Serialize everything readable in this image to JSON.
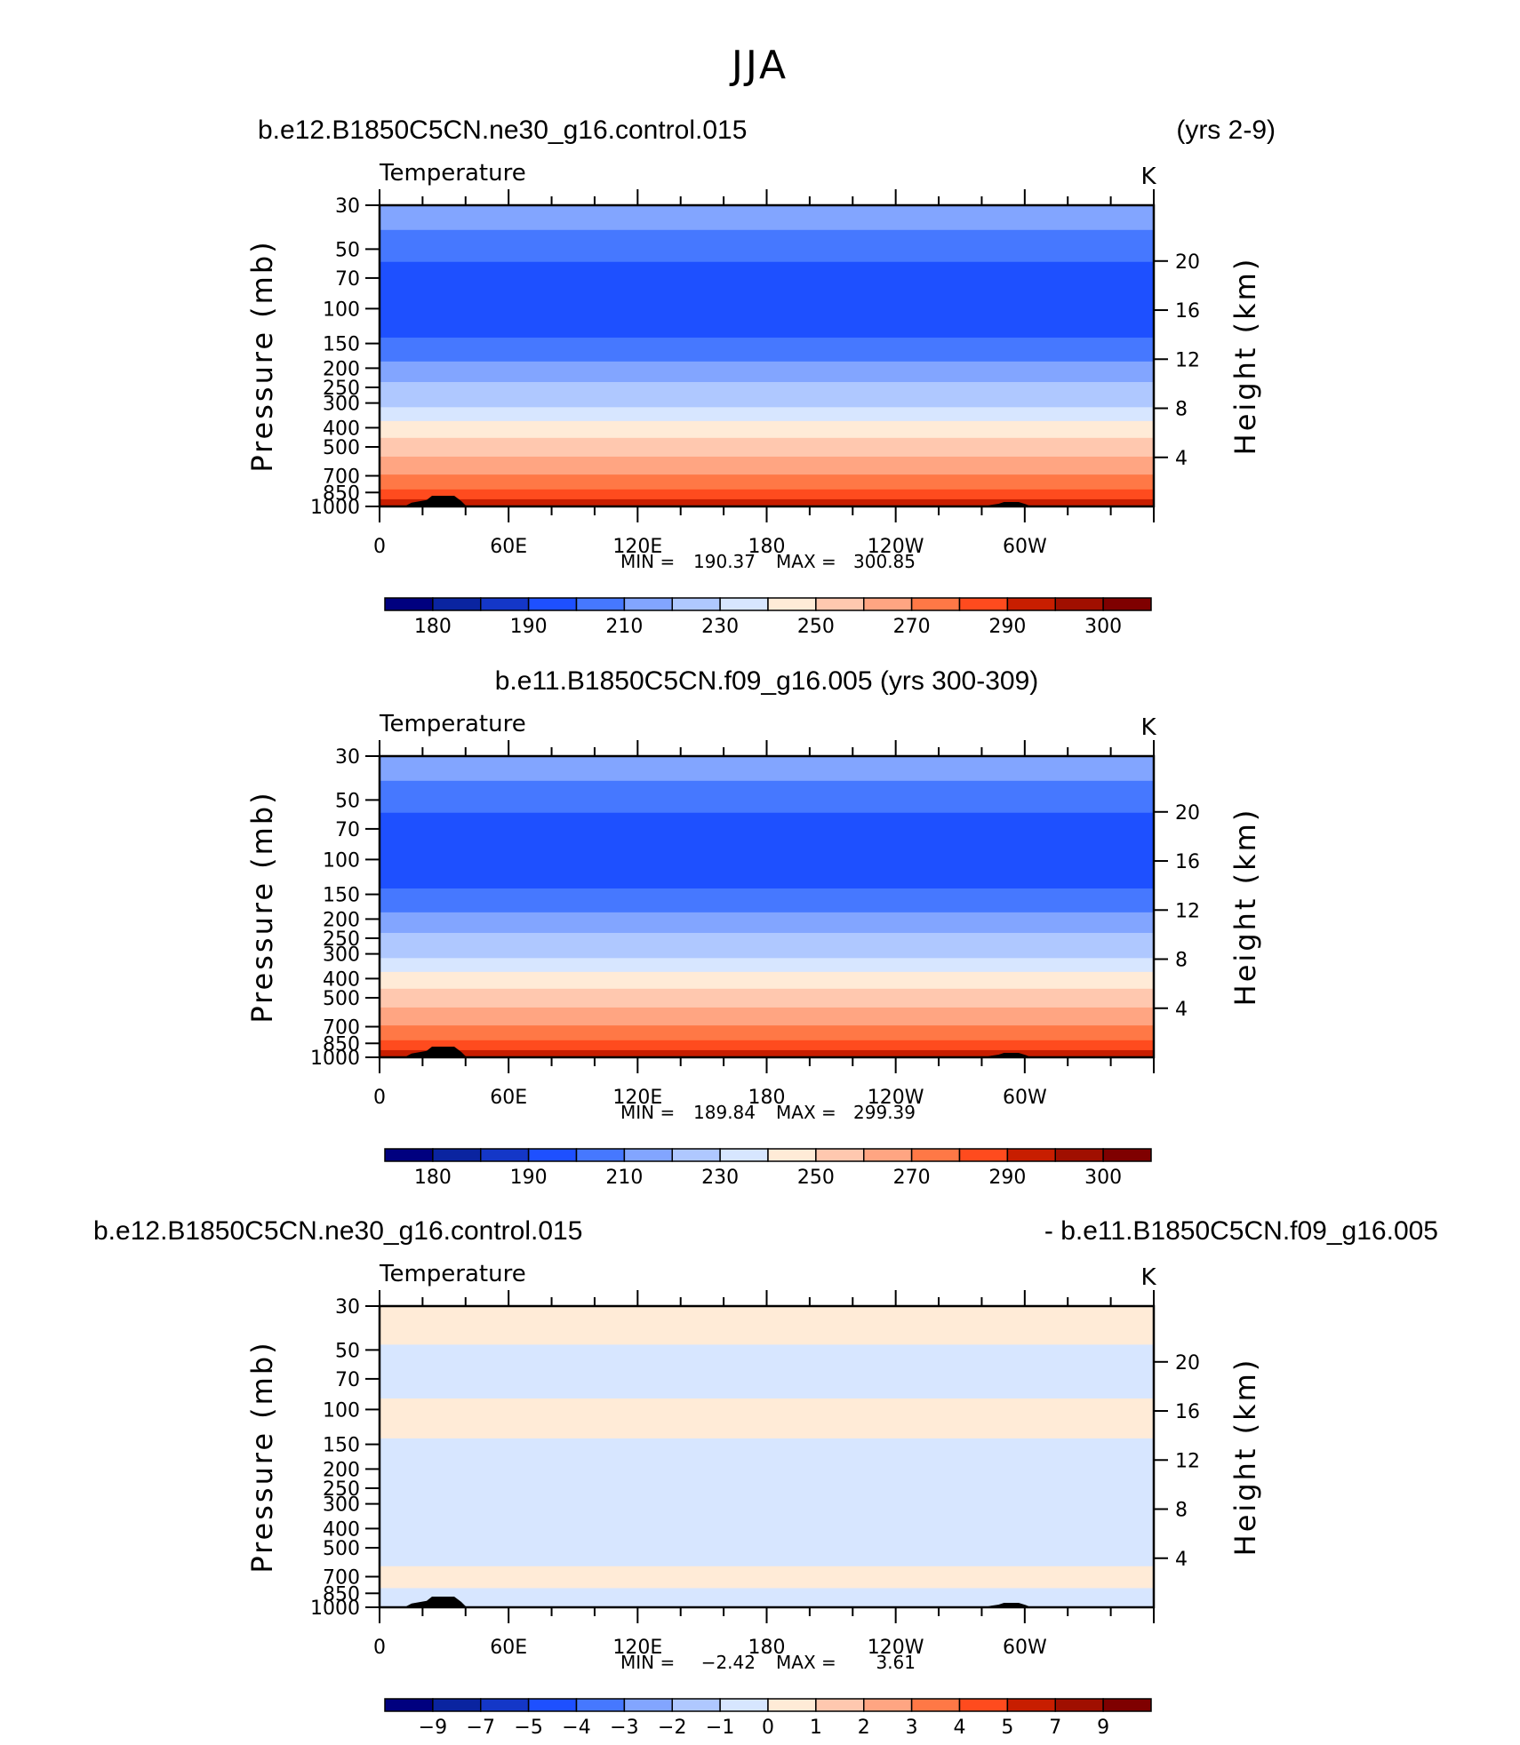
{
  "page_title": "JJA",
  "colors": {
    "ramp": [
      "#00007f",
      "#0a24a0",
      "#1437c8",
      "#1e50ff",
      "#4678ff",
      "#82a5ff",
      "#afc8ff",
      "#d7e6ff",
      "#ffebd7",
      "#ffc8af",
      "#ffa582",
      "#ff7846",
      "#ff4b1e",
      "#c81e00",
      "#a00f00",
      "#7f0000"
    ],
    "terrain": "#000000"
  },
  "chart_data": [
    {
      "type": "contour",
      "left_title": "b.e12.B1850C5CN.ne30_g16.control.015",
      "right_title": "(yrs 2-9)",
      "variable": "Temperature",
      "units": "K",
      "xlabel": "",
      "ylabel": "Pressure (mb)",
      "y2label": "Height (km)",
      "x_ticks": [
        "0",
        "60E",
        "120E",
        "180",
        "120W",
        "60W"
      ],
      "x_range": [
        0,
        360
      ],
      "p_range": [
        30,
        1000
      ],
      "p_ticks": [
        30,
        50,
        70,
        100,
        150,
        200,
        250,
        300,
        400,
        500,
        700,
        850,
        1000
      ],
      "z_ticks": [
        20,
        16,
        12,
        8,
        4
      ],
      "levels": [
        180,
        190,
        210,
        230,
        250,
        270,
        290,
        300
      ],
      "cbar_labels": [
        "180",
        "190",
        "210",
        "230",
        "250",
        "270",
        "290",
        "300"
      ],
      "stats": {
        "min_label": "MIN =",
        "min": "190.37",
        "max_label": "MAX =",
        "max": "300.85"
      },
      "bands": [
        {
          "p_top": 30,
          "p_bot": 40,
          "color_index": 5
        },
        {
          "p_top": 40,
          "p_bot": 58,
          "color_index": 4
        },
        {
          "p_top": 58,
          "p_bot": 140,
          "color_index": 3
        },
        {
          "p_top": 140,
          "p_bot": 185,
          "color_index": 4
        },
        {
          "p_top": 185,
          "p_bot": 235,
          "color_index": 5
        },
        {
          "p_top": 235,
          "p_bot": 315,
          "color_index": 6
        },
        {
          "p_top": 315,
          "p_bot": 370,
          "color_index": 7
        },
        {
          "p_top": 370,
          "p_bot": 450,
          "color_index": 8
        },
        {
          "p_top": 450,
          "p_bot": 560,
          "color_index": 9
        },
        {
          "p_top": 560,
          "p_bot": 690,
          "color_index": 10
        },
        {
          "p_top": 690,
          "p_bot": 820,
          "color_index": 11
        },
        {
          "p_top": 820,
          "p_bot": 920,
          "color_index": 12
        },
        {
          "p_top": 920,
          "p_bot": 1000,
          "color_index": 13
        }
      ]
    },
    {
      "type": "contour",
      "center_title": "b.e11.B1850C5CN.f09_g16.005 (yrs 300-309)",
      "variable": "Temperature",
      "units": "K",
      "xlabel": "",
      "ylabel": "Pressure (mb)",
      "y2label": "Height (km)",
      "x_ticks": [
        "0",
        "60E",
        "120E",
        "180",
        "120W",
        "60W"
      ],
      "x_range": [
        0,
        360
      ],
      "p_range": [
        30,
        1000
      ],
      "p_ticks": [
        30,
        50,
        70,
        100,
        150,
        200,
        250,
        300,
        400,
        500,
        700,
        850,
        1000
      ],
      "z_ticks": [
        20,
        16,
        12,
        8,
        4
      ],
      "levels": [
        180,
        190,
        210,
        230,
        250,
        270,
        290,
        300
      ],
      "cbar_labels": [
        "180",
        "190",
        "210",
        "230",
        "250",
        "270",
        "290",
        "300"
      ],
      "stats": {
        "min_label": "MIN =",
        "min": "189.84",
        "max_label": "MAX =",
        "max": "299.39"
      },
      "bands": [
        {
          "p_top": 30,
          "p_bot": 40,
          "color_index": 5
        },
        {
          "p_top": 40,
          "p_bot": 58,
          "color_index": 4
        },
        {
          "p_top": 58,
          "p_bot": 140,
          "color_index": 3
        },
        {
          "p_top": 140,
          "p_bot": 185,
          "color_index": 4
        },
        {
          "p_top": 185,
          "p_bot": 235,
          "color_index": 5
        },
        {
          "p_top": 235,
          "p_bot": 315,
          "color_index": 6
        },
        {
          "p_top": 315,
          "p_bot": 370,
          "color_index": 7
        },
        {
          "p_top": 370,
          "p_bot": 450,
          "color_index": 8
        },
        {
          "p_top": 450,
          "p_bot": 560,
          "color_index": 9
        },
        {
          "p_top": 560,
          "p_bot": 690,
          "color_index": 10
        },
        {
          "p_top": 690,
          "p_bot": 820,
          "color_index": 11
        },
        {
          "p_top": 820,
          "p_bot": 920,
          "color_index": 12
        },
        {
          "p_top": 920,
          "p_bot": 1000,
          "color_index": 13
        }
      ]
    },
    {
      "type": "contour",
      "left_title": "b.e12.B1850C5CN.ne30_g16.control.015",
      "right_title": "- b.e11.B1850C5CN.f09_g16.005",
      "variable": "Temperature",
      "units": "K",
      "xlabel": "",
      "ylabel": "Pressure (mb)",
      "y2label": "Height (km)",
      "x_ticks": [
        "0",
        "60E",
        "120E",
        "180",
        "120W",
        "60W"
      ],
      "x_range": [
        0,
        360
      ],
      "p_range": [
        30,
        1000
      ],
      "p_ticks": [
        30,
        50,
        70,
        100,
        150,
        200,
        250,
        300,
        400,
        500,
        700,
        850,
        1000
      ],
      "z_ticks": [
        20,
        16,
        12,
        8,
        4
      ],
      "levels": [
        -9,
        -7,
        -5,
        -4,
        -3,
        -2,
        -1,
        0,
        1,
        2,
        3,
        4,
        5,
        7,
        9
      ],
      "cbar_labels": [
        "−9",
        "−7",
        "−5",
        "−4",
        "−3",
        "−2",
        "−1",
        "0",
        "1",
        "2",
        "3",
        "4",
        "5",
        "7",
        "9"
      ],
      "stats": {
        "min_label": "MIN =",
        "min": "−2.42",
        "max_label": "MAX =",
        "max": "3.61"
      },
      "bands": [
        {
          "p_top": 30,
          "p_bot": 47,
          "color_index": 8
        },
        {
          "p_top": 47,
          "p_bot": 88,
          "color_index": 7
        },
        {
          "p_top": 88,
          "p_bot": 140,
          "color_index": 8
        },
        {
          "p_top": 140,
          "p_bot": 620,
          "color_index": 7
        },
        {
          "p_top": 620,
          "p_bot": 800,
          "color_index": 8
        },
        {
          "p_top": 800,
          "p_bot": 1000,
          "color_index": 7
        }
      ]
    }
  ]
}
